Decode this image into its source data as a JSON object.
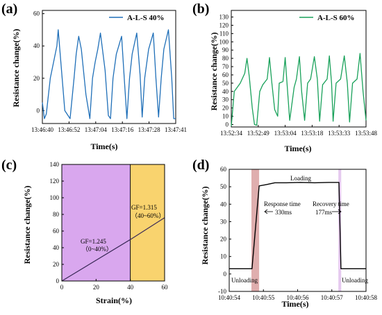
{
  "chart_data": [
    {
      "panel": "(a)",
      "type": "line",
      "color": "#1f6fb8",
      "xlabel": "Time(s)",
      "ylabel": "Resistance change(%)",
      "ylim": [
        -8,
        62
      ],
      "yticks": [
        0,
        20,
        40,
        60
      ],
      "xtick_labels": [
        "13:46:40",
        "13:46:52",
        "13:47:04",
        "13:47:16",
        "13:47:28",
        "13:47:41"
      ],
      "series": [
        {
          "name": "A-L-S  40%",
          "x": [
            0,
            1.5,
            3,
            6,
            9,
            11,
            12,
            13,
            15,
            17,
            21,
            24,
            25.6,
            27.5,
            29.5,
            33,
            36,
            38,
            40,
            42,
            44,
            47.5,
            50,
            51.6,
            53.5,
            56,
            60,
            62,
            64,
            66,
            68,
            71.5,
            74,
            75.6,
            77.5,
            80.5,
            84,
            86,
            88,
            90,
            92,
            95.5,
            98,
            99.5,
            101
          ],
          "y": [
            5,
            -5,
            -2,
            20,
            32,
            40,
            50,
            40,
            20,
            0,
            -5,
            20,
            35,
            46,
            38,
            10,
            -5,
            20,
            30,
            38,
            48,
            25,
            -3,
            -5,
            20,
            35,
            46,
            20,
            -5,
            20,
            35,
            48,
            22,
            -4,
            20,
            38,
            48,
            20,
            -4,
            20,
            38,
            50,
            20,
            -5,
            -5
          ]
        }
      ]
    },
    {
      "panel": "(b)",
      "type": "line",
      "color": "#19a15a",
      "xlabel": "Time(s)",
      "ylabel": "Resistance change(%)",
      "ylim": [
        -3,
        138
      ],
      "yticks": [
        0,
        10,
        20,
        30,
        40,
        50,
        60,
        70,
        80,
        90,
        100,
        110,
        120,
        130
      ],
      "xtick_labels": [
        "13:52:34",
        "13:52:49",
        "13:53:04",
        "13:53:18",
        "13:53:33",
        "13:53:48"
      ],
      "series": [
        {
          "name": "A-L-S 60%",
          "x": [
            0,
            2,
            6,
            9,
            10.5,
            12,
            14,
            15.5,
            17,
            19,
            21,
            24,
            25.5,
            27,
            29,
            31,
            32,
            34.5,
            36,
            37,
            39,
            42,
            43.5,
            45.5,
            47,
            49,
            51,
            53,
            55.5,
            57.5,
            59,
            61,
            64,
            65.5,
            67,
            68,
            70,
            73,
            75.5,
            77.5,
            79,
            81,
            84,
            86,
            88,
            90
          ],
          "y": [
            -2,
            40,
            50,
            62,
            80,
            58,
            20,
            0,
            -1,
            40,
            48,
            55,
            81,
            52,
            18,
            10,
            50,
            52,
            81,
            55,
            5,
            45,
            55,
            82,
            40,
            5,
            50,
            55,
            82,
            55,
            4,
            48,
            55,
            83,
            50,
            4,
            50,
            55,
            83,
            50,
            3,
            50,
            55,
            86,
            40,
            5
          ]
        }
      ]
    },
    {
      "panel": "(c)",
      "type": "line",
      "xlabel": "Strain(%)",
      "ylabel": "Resistance change(%)",
      "xlim": [
        0,
        60
      ],
      "ylim": [
        0,
        140
      ],
      "xticks": [
        0,
        20,
        40,
        60
      ],
      "yticks": [
        0,
        20,
        40,
        60,
        80,
        100,
        120,
        140
      ],
      "regions": [
        {
          "from": 0,
          "to": 40,
          "color": "#d9a7ee",
          "label": "GF=1.245",
          "sublabel": "（0~40%）"
        },
        {
          "from": 40,
          "to": 60,
          "color": "#f9d36e",
          "label": "GF=1.315",
          "sublabel": "（40~60%）"
        }
      ],
      "series": [
        {
          "x": [
            0,
            40,
            60
          ],
          "y": [
            0,
            49.8,
            76.1
          ],
          "color": "#3b2a58"
        }
      ]
    },
    {
      "panel": "(d)",
      "type": "line",
      "xlabel": "Time(s)",
      "ylabel": "Resistance change(%)",
      "ylim": [
        -10,
        60
      ],
      "yticks": [
        -10,
        0,
        10,
        20,
        30,
        40,
        50,
        60
      ],
      "xtick_labels": [
        "10:40:54",
        "10:40:55",
        "10:40:56",
        "10:40:57",
        "10:40:58"
      ],
      "regions": [
        {
          "from": 0.78,
          "to": 1.05,
          "color": "#d9a0a0"
        },
        {
          "from": 3.83,
          "to": 3.93,
          "color": "#e0c0ec"
        }
      ],
      "series": [
        {
          "x": [
            0,
            0.8,
            1.05,
            1.3,
            1.6,
            2.0,
            2.5,
            3.0,
            3.5,
            3.85,
            3.92,
            4.0,
            4.8
          ],
          "y": [
            3,
            3,
            50.5,
            51.2,
            52.3,
            52.3,
            52.5,
            52.3,
            52.5,
            52.5,
            3,
            3,
            3
          ],
          "color": "#000000"
        }
      ],
      "annotations": {
        "loading": "Loading",
        "response_time": "Response time",
        "response_value": "330ms",
        "recovery_time": "Recovery time",
        "recovery_value": "177ms",
        "unloading_left": "Unloading",
        "unloading_right": "Unloading"
      }
    }
  ]
}
